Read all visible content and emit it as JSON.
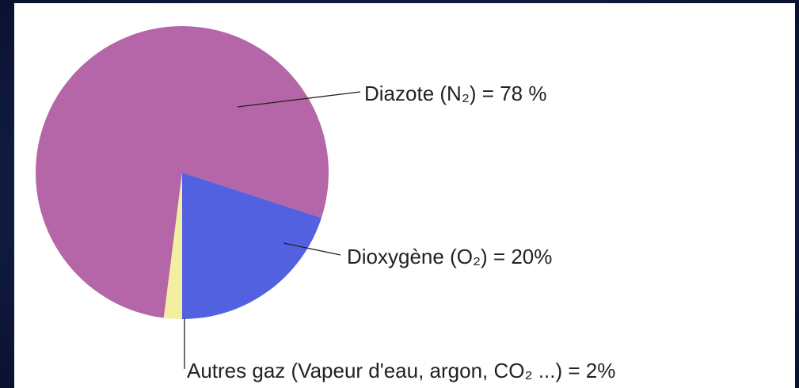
{
  "chart_data": {
    "type": "pie",
    "values": [
      78,
      20,
      2
    ],
    "value_labels": [
      "Diazote (N₂) = 78 %",
      "Dioxygène (O₂) = 20%",
      "Autres gaz (Vapeur d'eau, argon, CO₂ ...) = 2%"
    ],
    "colors": [
      "#b466a8",
      "#5261df",
      "#f4eea0"
    ]
  }
}
